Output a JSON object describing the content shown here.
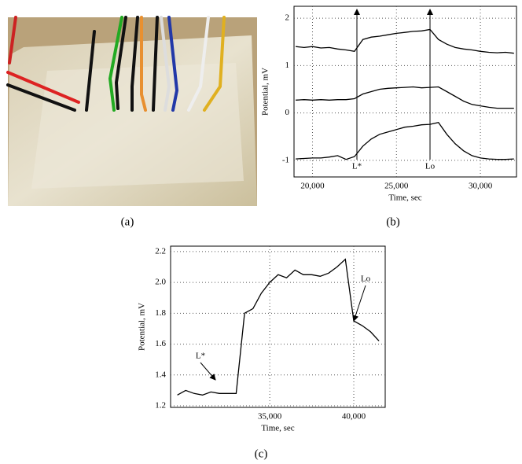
{
  "figure_labels": [
    "(a)",
    "(b)",
    "(c)"
  ],
  "chart_data": [
    {
      "type": "line",
      "xlabel": "Time, sec",
      "ylabel": "Potential, mV",
      "x": [
        19000,
        19500,
        20000,
        20500,
        21000,
        21500,
        22000,
        22500,
        23000,
        23500,
        24000,
        24500,
        25000,
        25500,
        26000,
        26500,
        27000,
        27500,
        28000,
        28500,
        29000,
        29500,
        30000,
        30500,
        31000,
        31500,
        32000
      ],
      "series": [
        {
          "color": "#000000",
          "values": [
            1.4,
            1.38,
            1.4,
            1.37,
            1.38,
            1.35,
            1.33,
            1.3,
            1.55,
            1.6,
            1.62,
            1.65,
            1.68,
            1.7,
            1.72,
            1.73,
            1.76,
            1.55,
            1.45,
            1.38,
            1.35,
            1.33,
            1.3,
            1.28,
            1.27,
            1.28,
            1.26
          ]
        },
        {
          "color": "#000000",
          "values": [
            0.27,
            0.28,
            0.27,
            0.28,
            0.27,
            0.28,
            0.28,
            0.3,
            0.4,
            0.45,
            0.5,
            0.52,
            0.53,
            0.54,
            0.55,
            0.53,
            0.54,
            0.55,
            0.45,
            0.35,
            0.25,
            0.18,
            0.15,
            0.12,
            0.1,
            0.1,
            0.1
          ]
        },
        {
          "color": "#000000",
          "values": [
            -0.97,
            -0.96,
            -0.95,
            -0.95,
            -0.93,
            -0.9,
            -0.98,
            -0.92,
            -0.7,
            -0.55,
            -0.45,
            -0.4,
            -0.35,
            -0.3,
            -0.28,
            -0.25,
            -0.24,
            -0.2,
            -0.45,
            -0.65,
            -0.8,
            -0.9,
            -0.95,
            -0.97,
            -0.98,
            -0.98,
            -0.97
          ]
        }
      ],
      "xlim": [
        18900,
        32150
      ],
      "ylim": [
        -1.35,
        2.25
      ],
      "xticks": [
        {
          "value": 20000,
          "label": "20,000"
        },
        {
          "value": 25000,
          "label": "25,000"
        },
        {
          "value": 30000,
          "label": "30,000"
        }
      ],
      "yticks": [
        -1,
        0,
        1,
        2
      ],
      "grid": true,
      "annotations": [
        "L*",
        "Lo"
      ]
    },
    {
      "type": "line",
      "xlabel": "Time, sec",
      "ylabel": "Potential, mV",
      "x": [
        29500,
        30000,
        30500,
        31000,
        31500,
        32000,
        32500,
        33000,
        33500,
        34000,
        34500,
        35000,
        35500,
        36000,
        36500,
        37000,
        37500,
        38000,
        38500,
        39000,
        39500,
        40000,
        40500,
        41000,
        41500
      ],
      "series": [
        {
          "color": "#000000",
          "values": [
            1.27,
            1.3,
            1.28,
            1.27,
            1.29,
            1.28,
            1.28,
            1.28,
            1.8,
            1.83,
            1.93,
            2.0,
            2.05,
            2.03,
            2.08,
            2.05,
            2.05,
            2.04,
            2.06,
            2.1,
            2.15,
            1.75,
            1.72,
            1.68,
            1.62
          ]
        }
      ],
      "xlim": [
        29100,
        41870
      ],
      "ylim": [
        1.19,
        2.235
      ],
      "xticks": [
        {
          "value": 35000,
          "label": "35,000"
        },
        {
          "value": 40000,
          "label": "40,000"
        }
      ],
      "yticks": [
        1.2,
        1.4,
        1.6,
        1.8,
        {
          "value": 2,
          "label": "2.0"
        },
        2.2
      ],
      "grid": true,
      "annotations": [
        "L*",
        "Lo"
      ]
    }
  ]
}
